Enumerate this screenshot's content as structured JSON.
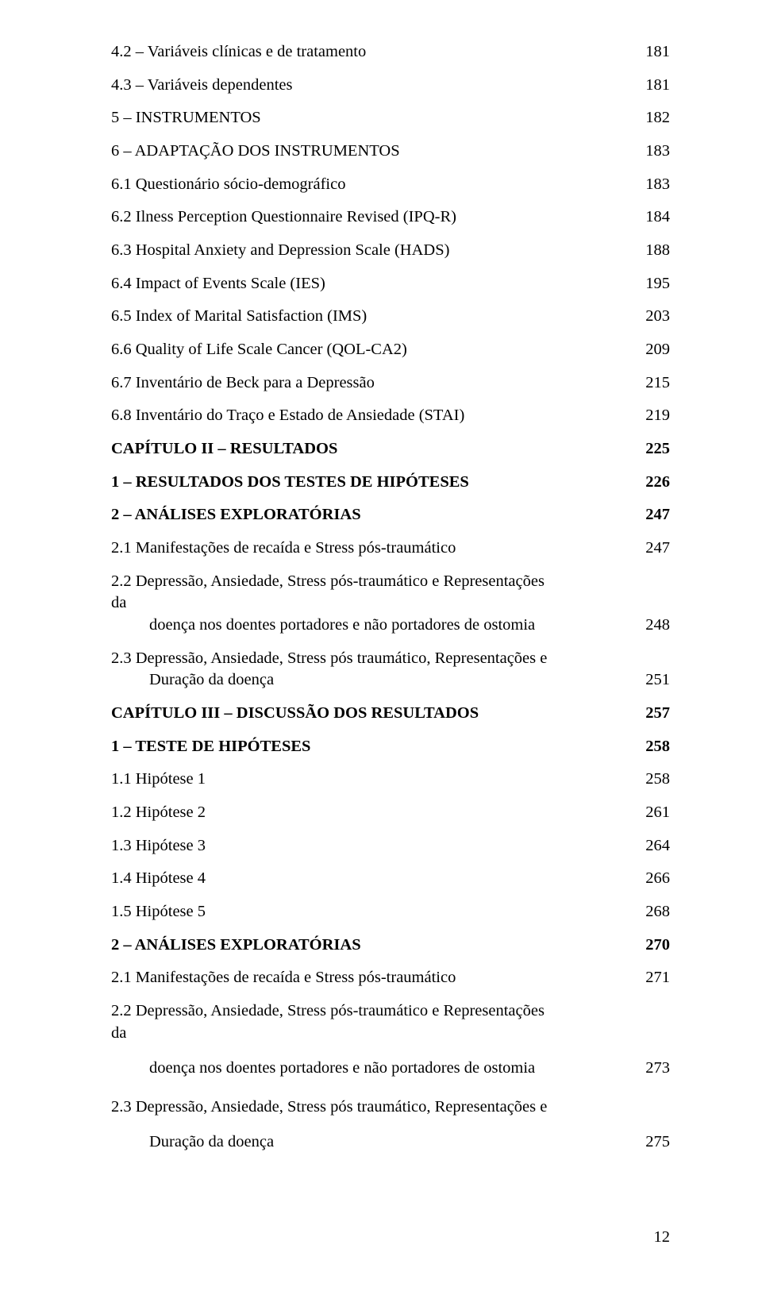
{
  "rows": [
    {
      "label": "4.2 – Variáveis clínicas e de tratamento",
      "page": "181",
      "bold": false,
      "indent": 0
    },
    {
      "label": "4.3 – Variáveis dependentes",
      "page": "181",
      "bold": false,
      "indent": 0
    },
    {
      "label": "5 – INSTRUMENTOS",
      "page": "182",
      "bold": false,
      "indent": 0
    },
    {
      "label": "6 – ADAPTAÇÃO DOS INSTRUMENTOS",
      "page": "183",
      "bold": false,
      "indent": 0
    },
    {
      "label": "6.1 Questionário sócio-demográfico",
      "page": "183",
      "bold": false,
      "indent": 0
    },
    {
      "label": "6.2 Ilness Perception Questionnaire Revised (IPQ-R)",
      "page": "184",
      "bold": false,
      "indent": 0
    },
    {
      "label": "6.3 Hospital Anxiety and Depression Scale (HADS)",
      "page": "188",
      "bold": false,
      "indent": 0
    },
    {
      "label": "6.4 Impact of Events Scale (IES)",
      "page": "195",
      "bold": false,
      "indent": 0
    },
    {
      "label": "6.5 Index of Marital Satisfaction (IMS)",
      "page": "203",
      "bold": false,
      "indent": 0
    },
    {
      "label": "6.6 Quality of Life Scale Cancer (QOL-CA2)",
      "page": "209",
      "bold": false,
      "indent": 0
    },
    {
      "label": "6.7 Inventário de Beck para a Depressão",
      "page": "215",
      "bold": false,
      "indent": 0
    },
    {
      "label": "6.8 Inventário do Traço e Estado de Ansiedade (STAI)",
      "page": "219",
      "bold": false,
      "indent": 0
    },
    {
      "label": "CAPÍTULO II – RESULTADOS",
      "page": "225",
      "bold": true,
      "indent": 0
    },
    {
      "label": "1 – RESULTADOS DOS TESTES DE HIPÓTESES",
      "page": "226",
      "bold": true,
      "indent": 0
    },
    {
      "label": "2 – ANÁLISES EXPLORATÓRIAS",
      "page": "247",
      "bold": true,
      "indent": 0
    },
    {
      "label": "2.1 Manifestações de recaída e Stress pós-traumático",
      "page": "247",
      "bold": false,
      "indent": 0
    },
    {
      "label": "2.2 Depressão, Ansiedade, Stress pós-traumático e Representações da",
      "label2": "doença nos doentes portadores e não portadores de ostomia",
      "page": "248",
      "bold": false,
      "indent": 0,
      "multiline": true
    },
    {
      "label": "2.3 Depressão, Ansiedade, Stress pós traumático, Representações e",
      "label2": "Duração da doença",
      "page": "251",
      "bold": false,
      "indent": 0,
      "multiline": true
    },
    {
      "label": "CAPÍTULO III – DISCUSSÃO DOS RESULTADOS",
      "page": "257",
      "bold": true,
      "indent": 0
    },
    {
      "label": "1 – TESTE DE HIPÓTESES",
      "page": "258",
      "bold": true,
      "indent": 0
    },
    {
      "label": "1.1 Hipótese 1",
      "page": "258",
      "bold": false,
      "indent": 0
    },
    {
      "label": "1.2 Hipótese 2",
      "page": "261",
      "bold": false,
      "indent": 0
    },
    {
      "label": "1.3 Hipótese 3",
      "page": "264",
      "bold": false,
      "indent": 0
    },
    {
      "label": "1.4 Hipótese 4",
      "page": "266",
      "bold": false,
      "indent": 0
    },
    {
      "label": "1.5 Hipótese 5",
      "page": "268",
      "bold": false,
      "indent": 0
    },
    {
      "label": "2 – ANÁLISES EXPLORATÓRIAS",
      "page": "270",
      "bold": true,
      "indent": 0
    },
    {
      "label": "2.1 Manifestações de recaída e Stress pós-traumático",
      "page": "271",
      "bold": false,
      "indent": 0
    },
    {
      "label": "2.2 Depressão, Ansiedade, Stress pós-traumático e Representações da",
      "label2": "doença nos doentes portadores e não portadores de ostomia",
      "page": "273",
      "bold": false,
      "indent": 0,
      "multiline": true,
      "spaced": true
    },
    {
      "label": "2.3 Depressão, Ansiedade, Stress pós traumático, Representações e",
      "label2": "Duração da doença",
      "page": "275",
      "bold": false,
      "indent": 0,
      "multiline": true,
      "spaced": true
    }
  ],
  "footer_page": "12"
}
